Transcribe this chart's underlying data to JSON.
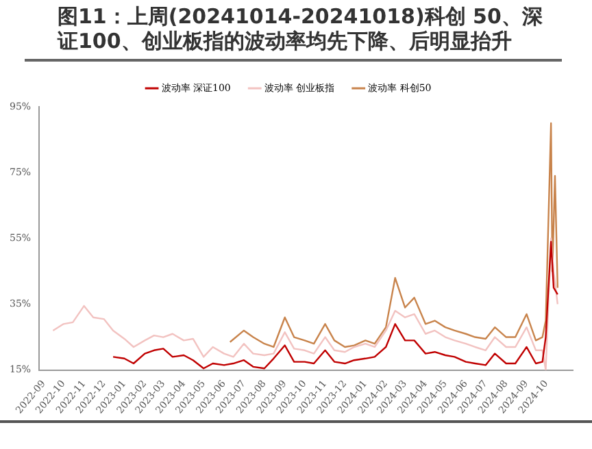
{
  "chart_data": {
    "type": "line",
    "title": "图11：上周(20241014-20241018)科创 50、深证100、创业板指的波动率均先下降、后明显抬升",
    "legend": "top",
    "grid": false,
    "marker": "none",
    "line_style": "solid",
    "xlim": [
      "2022-08-25",
      "2024-11-10"
    ],
    "xticks": [
      {
        "value": "2022-09-01",
        "label": "2022-09"
      },
      {
        "value": "2022-10-01",
        "label": "2022-10"
      },
      {
        "value": "2022-11-01",
        "label": "2022-11"
      },
      {
        "value": "2022-12-01",
        "label": "2022-12"
      },
      {
        "value": "2023-01-01",
        "label": "2023-01"
      },
      {
        "value": "2023-02-01",
        "label": "2023-02"
      },
      {
        "value": "2023-03-01",
        "label": "2023-03"
      },
      {
        "value": "2023-04-01",
        "label": "2023-04"
      },
      {
        "value": "2023-05-01",
        "label": "2023-05"
      },
      {
        "value": "2023-06-01",
        "label": "2023-06"
      },
      {
        "value": "2023-07-01",
        "label": "2023-07"
      },
      {
        "value": "2023-08-01",
        "label": "2023-08"
      },
      {
        "value": "2023-09-01",
        "label": "2023-09"
      },
      {
        "value": "2023-10-01",
        "label": "2023-10"
      },
      {
        "value": "2023-11-01",
        "label": "2023-11"
      },
      {
        "value": "2023-12-01",
        "label": "2023-12"
      },
      {
        "value": "2024-01-01",
        "label": "2024-01"
      },
      {
        "value": "2024-02-01",
        "label": "2024-02"
      },
      {
        "value": "2024-03-01",
        "label": "2024-03"
      },
      {
        "value": "2024-04-01",
        "label": "2024-04"
      },
      {
        "value": "2024-05-01",
        "label": "2024-05"
      },
      {
        "value": "2024-06-01",
        "label": "2024-06"
      },
      {
        "value": "2024-07-01",
        "label": "2024-07"
      },
      {
        "value": "2024-08-01",
        "label": "2024-08"
      },
      {
        "value": "2024-09-01",
        "label": "2024-09"
      },
      {
        "value": "2024-10-01",
        "label": "2024-10"
      }
    ],
    "ylim": [
      15,
      95
    ],
    "yticks": [
      {
        "value": 15,
        "label": "15%"
      },
      {
        "value": 35,
        "label": "35%"
      },
      {
        "value": 55,
        "label": "55%"
      },
      {
        "value": 75,
        "label": "75%"
      },
      {
        "value": 95,
        "label": "95%"
      }
    ],
    "series": [
      {
        "name": "波动率 深证100",
        "color": "#c00000",
        "x": [
          "2022-12-15",
          "2023-01-01",
          "2023-01-15",
          "2023-02-01",
          "2023-02-15",
          "2023-03-01",
          "2023-03-15",
          "2023-04-01",
          "2023-04-15",
          "2023-05-01",
          "2023-05-15",
          "2023-06-01",
          "2023-06-15",
          "2023-07-01",
          "2023-07-15",
          "2023-08-01",
          "2023-08-15",
          "2023-09-01",
          "2023-09-15",
          "2023-10-01",
          "2023-10-15",
          "2023-11-01",
          "2023-11-15",
          "2023-12-01",
          "2023-12-15",
          "2024-01-01",
          "2024-01-15",
          "2024-02-01",
          "2024-02-15",
          "2024-03-01",
          "2024-03-15",
          "2024-04-01",
          "2024-04-15",
          "2024-05-01",
          "2024-05-15",
          "2024-06-01",
          "2024-06-15",
          "2024-07-01",
          "2024-07-15",
          "2024-08-01",
          "2024-08-15",
          "2024-09-01",
          "2024-09-15",
          "2024-09-25",
          "2024-09-30",
          "2024-10-08",
          "2024-10-12",
          "2024-10-18"
        ],
        "values": [
          19,
          18.5,
          17,
          20,
          21,
          21.5,
          19,
          19.5,
          18,
          15.5,
          17,
          16.5,
          17,
          18,
          16,
          15.5,
          18.5,
          22.5,
          17.5,
          17.5,
          17,
          21,
          17.5,
          17,
          18,
          18.5,
          19,
          22,
          29,
          24,
          24,
          20,
          20.5,
          19.5,
          19,
          17.5,
          17,
          16.5,
          20,
          17,
          17,
          22,
          17,
          17.5,
          25,
          54,
          40,
          38
        ]
      },
      {
        "name": "波动率 创业板指",
        "color": "#f2c2c0",
        "x": [
          "2022-09-15",
          "2022-10-01",
          "2022-10-15",
          "2022-11-01",
          "2022-11-15",
          "2022-12-01",
          "2022-12-15",
          "2023-01-01",
          "2023-01-15",
          "2023-02-01",
          "2023-02-15",
          "2023-03-01",
          "2023-03-15",
          "2023-04-01",
          "2023-04-15",
          "2023-05-01",
          "2023-05-15",
          "2023-06-01",
          "2023-06-15",
          "2023-07-01",
          "2023-07-15",
          "2023-08-01",
          "2023-08-15",
          "2023-09-01",
          "2023-09-15",
          "2023-10-01",
          "2023-10-15",
          "2023-11-01",
          "2023-11-15",
          "2023-12-01",
          "2023-12-15",
          "2024-01-01",
          "2024-01-15",
          "2024-02-01",
          "2024-02-15",
          "2024-03-01",
          "2024-03-15",
          "2024-04-01",
          "2024-04-15",
          "2024-05-01",
          "2024-05-15",
          "2024-06-01",
          "2024-06-15",
          "2024-07-01",
          "2024-07-15",
          "2024-08-01",
          "2024-08-15",
          "2024-09-01",
          "2024-09-15",
          "2024-09-25",
          "2024-09-30",
          "2024-10-08",
          "2024-10-12",
          "2024-10-18"
        ],
        "values": [
          27,
          29,
          29.5,
          34.5,
          31,
          30.5,
          27,
          24.5,
          22,
          24,
          25.5,
          25,
          26,
          24,
          24.5,
          19,
          22,
          20,
          19,
          23,
          20,
          19.5,
          20,
          26.5,
          21.5,
          21,
          20,
          25,
          21,
          20.5,
          22,
          23,
          22,
          27,
          33,
          31,
          32,
          26,
          27,
          25,
          24,
          23,
          22,
          21,
          25,
          22,
          22,
          28,
          21,
          21,
          15,
          55,
          45,
          35
        ]
      },
      {
        "name": "波动率 科创50",
        "color": "#c8834b",
        "x": [
          "2023-06-10",
          "2023-07-01",
          "2023-07-15",
          "2023-08-01",
          "2023-08-15",
          "2023-09-01",
          "2023-09-15",
          "2023-10-01",
          "2023-10-15",
          "2023-11-01",
          "2023-11-15",
          "2023-12-01",
          "2023-12-15",
          "2024-01-01",
          "2024-01-15",
          "2024-02-01",
          "2024-02-15",
          "2024-03-01",
          "2024-03-15",
          "2024-04-01",
          "2024-04-15",
          "2024-05-01",
          "2024-05-15",
          "2024-06-01",
          "2024-06-15",
          "2024-07-01",
          "2024-07-15",
          "2024-08-01",
          "2024-08-15",
          "2024-09-01",
          "2024-09-15",
          "2024-09-25",
          "2024-09-30",
          "2024-10-08",
          "2024-10-10",
          "2024-10-14",
          "2024-10-18"
        ],
        "values": [
          23.5,
          27,
          25,
          23,
          22,
          31,
          25,
          24,
          23,
          29,
          24,
          22,
          22.5,
          24,
          23,
          28,
          43,
          34,
          37,
          29,
          30,
          28,
          27,
          26,
          25,
          24.5,
          28,
          25,
          25,
          32,
          24,
          25,
          30,
          90,
          45,
          74,
          40
        ]
      }
    ]
  }
}
